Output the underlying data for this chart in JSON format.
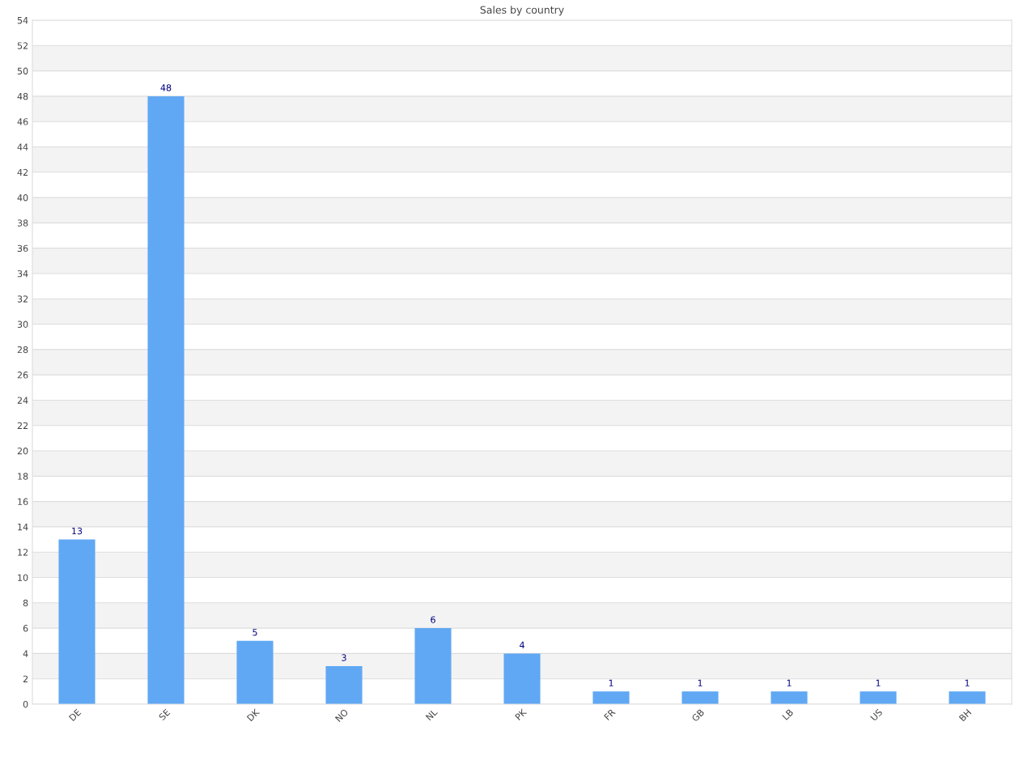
{
  "chart_data": {
    "type": "bar",
    "title": "Sales by country",
    "categories": [
      "DE",
      "SE",
      "DK",
      "NO",
      "NL",
      "PK",
      "FR",
      "GB",
      "LB",
      "US",
      "BH"
    ],
    "values": [
      13,
      48,
      5,
      3,
      6,
      4,
      1,
      1,
      1,
      1,
      1
    ],
    "color": "#60a8f4",
    "ylim": [
      0,
      54
    ],
    "yticks": [
      0,
      2,
      4,
      6,
      8,
      10,
      12,
      14,
      16,
      18,
      20,
      22,
      24,
      26,
      28,
      30,
      32,
      34,
      36,
      38,
      40,
      42,
      44,
      46,
      48,
      50,
      52,
      54
    ],
    "grid": "y",
    "data_labels": true
  }
}
